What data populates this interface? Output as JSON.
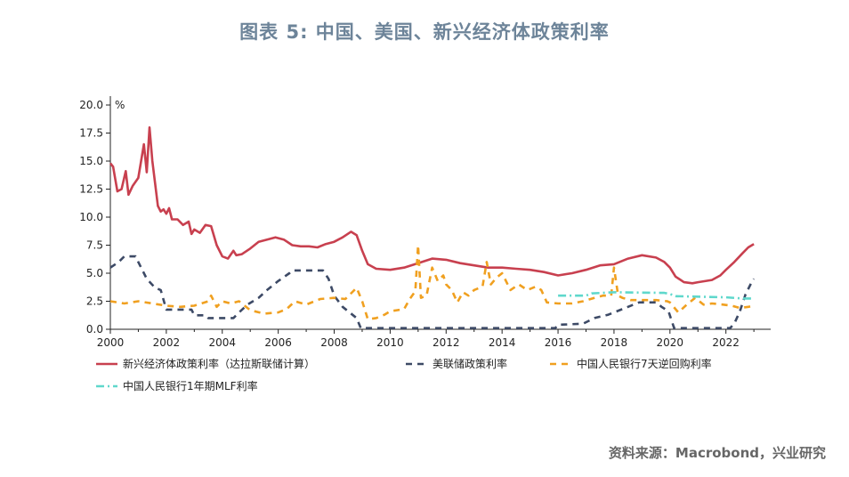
{
  "title": "图表 5:    中国、美国、新兴经济体政策利率",
  "source": "资料来源：Macrobond，兴业研究",
  "chart_data": {
    "type": "line",
    "ylabel": "%",
    "xlim": [
      2000,
      2023.6
    ],
    "ylim": [
      0,
      20
    ],
    "yticks": [
      "0.0",
      "2.5",
      "5.0",
      "7.5",
      "10.0",
      "12.5",
      "15.0",
      "17.5",
      "20.0"
    ],
    "xticks": [
      "2000",
      "2002",
      "2004",
      "2006",
      "2008",
      "2010",
      "2012",
      "2014",
      "2016",
      "2018",
      "2020",
      "2022"
    ],
    "series": [
      {
        "name": "新兴经济体政策利率（达拉斯联储计算）",
        "color": "#c8404f",
        "style": "solid",
        "points": [
          [
            2000,
            14.8
          ],
          [
            2000.1,
            14.5
          ],
          [
            2000.25,
            12.3
          ],
          [
            2000.4,
            12.5
          ],
          [
            2000.55,
            14.1
          ],
          [
            2000.65,
            12.0
          ],
          [
            2000.8,
            12.8
          ],
          [
            2001.0,
            13.5
          ],
          [
            2001.2,
            16.5
          ],
          [
            2001.3,
            14.0
          ],
          [
            2001.4,
            18.0
          ],
          [
            2001.5,
            15.0
          ],
          [
            2001.6,
            13.0
          ],
          [
            2001.7,
            11.0
          ],
          [
            2001.8,
            10.5
          ],
          [
            2001.9,
            10.7
          ],
          [
            2002.0,
            10.3
          ],
          [
            2002.1,
            10.8
          ],
          [
            2002.2,
            9.8
          ],
          [
            2002.4,
            9.8
          ],
          [
            2002.6,
            9.3
          ],
          [
            2002.8,
            9.6
          ],
          [
            2002.9,
            8.5
          ],
          [
            2003.0,
            8.9
          ],
          [
            2003.2,
            8.6
          ],
          [
            2003.4,
            9.3
          ],
          [
            2003.6,
            9.2
          ],
          [
            2003.8,
            7.5
          ],
          [
            2004.0,
            6.5
          ],
          [
            2004.2,
            6.3
          ],
          [
            2004.4,
            7.0
          ],
          [
            2004.5,
            6.6
          ],
          [
            2004.7,
            6.7
          ],
          [
            2005.0,
            7.2
          ],
          [
            2005.3,
            7.8
          ],
          [
            2005.6,
            8.0
          ],
          [
            2005.9,
            8.2
          ],
          [
            2006.2,
            8.0
          ],
          [
            2006.5,
            7.5
          ],
          [
            2006.8,
            7.4
          ],
          [
            2007.1,
            7.4
          ],
          [
            2007.4,
            7.3
          ],
          [
            2007.7,
            7.6
          ],
          [
            2008.0,
            7.8
          ],
          [
            2008.3,
            8.2
          ],
          [
            2008.6,
            8.7
          ],
          [
            2008.8,
            8.4
          ],
          [
            2009.0,
            7.0
          ],
          [
            2009.2,
            5.8
          ],
          [
            2009.5,
            5.4
          ],
          [
            2010.0,
            5.3
          ],
          [
            2010.5,
            5.5
          ],
          [
            2011.0,
            5.9
          ],
          [
            2011.5,
            6.3
          ],
          [
            2012.0,
            6.2
          ],
          [
            2012.5,
            5.9
          ],
          [
            2013.0,
            5.7
          ],
          [
            2013.5,
            5.5
          ],
          [
            2014.0,
            5.5
          ],
          [
            2014.5,
            5.4
          ],
          [
            2015.0,
            5.3
          ],
          [
            2015.5,
            5.1
          ],
          [
            2016.0,
            4.8
          ],
          [
            2016.5,
            5.0
          ],
          [
            2017.0,
            5.3
          ],
          [
            2017.5,
            5.7
          ],
          [
            2018.0,
            5.8
          ],
          [
            2018.5,
            6.3
          ],
          [
            2019.0,
            6.6
          ],
          [
            2019.5,
            6.4
          ],
          [
            2019.8,
            6.0
          ],
          [
            2020.0,
            5.5
          ],
          [
            2020.2,
            4.7
          ],
          [
            2020.5,
            4.2
          ],
          [
            2020.8,
            4.1
          ],
          [
            2021.0,
            4.2
          ],
          [
            2021.5,
            4.4
          ],
          [
            2021.8,
            4.8
          ],
          [
            2022.0,
            5.3
          ],
          [
            2022.3,
            6.0
          ],
          [
            2022.6,
            6.8
          ],
          [
            2022.8,
            7.3
          ],
          [
            2023.0,
            7.6
          ]
        ]
      },
      {
        "name": "美联储政策利率",
        "color": "#3d4a66",
        "style": "dashed",
        "points": [
          [
            2000,
            5.5
          ],
          [
            2000.3,
            6.0
          ],
          [
            2000.5,
            6.5
          ],
          [
            2000.9,
            6.5
          ],
          [
            2001.0,
            6.0
          ],
          [
            2001.3,
            4.5
          ],
          [
            2001.6,
            3.7
          ],
          [
            2001.8,
            3.5
          ],
          [
            2002.0,
            1.75
          ],
          [
            2002.9,
            1.75
          ],
          [
            2003.0,
            1.25
          ],
          [
            2003.4,
            1.25
          ],
          [
            2003.5,
            1.0
          ],
          [
            2004.4,
            1.0
          ],
          [
            2004.6,
            1.5
          ],
          [
            2004.9,
            2.2
          ],
          [
            2005.3,
            2.8
          ],
          [
            2005.6,
            3.5
          ],
          [
            2006.0,
            4.3
          ],
          [
            2006.4,
            5.0
          ],
          [
            2006.5,
            5.25
          ],
          [
            2007.6,
            5.25
          ],
          [
            2007.8,
            4.5
          ],
          [
            2008.0,
            3.0
          ],
          [
            2008.3,
            2.0
          ],
          [
            2008.8,
            1.0
          ],
          [
            2008.95,
            0.1
          ],
          [
            2015.9,
            0.1
          ],
          [
            2016.0,
            0.4
          ],
          [
            2016.9,
            0.5
          ],
          [
            2017.3,
            1.0
          ],
          [
            2017.8,
            1.3
          ],
          [
            2018.3,
            1.8
          ],
          [
            2018.9,
            2.4
          ],
          [
            2019.5,
            2.4
          ],
          [
            2019.7,
            2.0
          ],
          [
            2019.95,
            1.6
          ],
          [
            2020.15,
            0.1
          ],
          [
            2022.15,
            0.1
          ],
          [
            2022.3,
            0.5
          ],
          [
            2022.5,
            1.6
          ],
          [
            2022.7,
            3.1
          ],
          [
            2022.9,
            4.1
          ],
          [
            2023.0,
            4.5
          ]
        ]
      },
      {
        "name": "中国人民银行7天逆回购利率",
        "color": "#f0a020",
        "style": "dashed",
        "points": [
          [
            2000,
            2.5
          ],
          [
            2000.5,
            2.3
          ],
          [
            2001.0,
            2.5
          ],
          [
            2001.5,
            2.3
          ],
          [
            2002.0,
            2.1
          ],
          [
            2002.5,
            2.0
          ],
          [
            2003.0,
            2.1
          ],
          [
            2003.5,
            2.5
          ],
          [
            2003.6,
            3.0
          ],
          [
            2003.8,
            2.0
          ],
          [
            2004.0,
            2.5
          ],
          [
            2004.3,
            2.3
          ],
          [
            2004.6,
            2.5
          ],
          [
            2005.0,
            1.7
          ],
          [
            2005.5,
            1.4
          ],
          [
            2006.0,
            1.5
          ],
          [
            2006.3,
            1.8
          ],
          [
            2006.6,
            2.5
          ],
          [
            2007.0,
            2.2
          ],
          [
            2007.5,
            2.7
          ],
          [
            2008.0,
            2.8
          ],
          [
            2008.4,
            2.7
          ],
          [
            2008.8,
            3.7
          ],
          [
            2009.0,
            2.5
          ],
          [
            2009.2,
            0.9
          ],
          [
            2009.5,
            1.0
          ],
          [
            2009.8,
            1.3
          ],
          [
            2010.0,
            1.6
          ],
          [
            2010.5,
            1.8
          ],
          [
            2010.7,
            2.7
          ],
          [
            2010.9,
            3.4
          ],
          [
            2011.0,
            7.5
          ],
          [
            2011.1,
            2.8
          ],
          [
            2011.3,
            3.0
          ],
          [
            2011.5,
            5.5
          ],
          [
            2011.7,
            4.3
          ],
          [
            2011.9,
            4.8
          ],
          [
            2012.0,
            4.0
          ],
          [
            2012.2,
            3.5
          ],
          [
            2012.4,
            2.4
          ],
          [
            2012.6,
            3.3
          ],
          [
            2012.8,
            3.0
          ],
          [
            2013.0,
            3.5
          ],
          [
            2013.3,
            3.8
          ],
          [
            2013.45,
            6.0
          ],
          [
            2013.6,
            4.0
          ],
          [
            2013.8,
            4.6
          ],
          [
            2014.0,
            5.0
          ],
          [
            2014.3,
            3.5
          ],
          [
            2014.6,
            4.0
          ],
          [
            2014.9,
            3.5
          ],
          [
            2015.2,
            3.8
          ],
          [
            2015.4,
            3.5
          ],
          [
            2015.6,
            2.4
          ],
          [
            2016.0,
            2.3
          ],
          [
            2016.5,
            2.3
          ],
          [
            2016.9,
            2.5
          ],
          [
            2017.3,
            2.8
          ],
          [
            2017.6,
            3.0
          ],
          [
            2017.9,
            3.0
          ],
          [
            2018.0,
            5.5
          ],
          [
            2018.15,
            3.0
          ],
          [
            2018.3,
            2.8
          ],
          [
            2018.6,
            2.6
          ],
          [
            2019.0,
            2.6
          ],
          [
            2019.5,
            2.6
          ],
          [
            2019.9,
            2.5
          ],
          [
            2020.0,
            2.4
          ],
          [
            2020.3,
            1.5
          ],
          [
            2020.6,
            2.2
          ],
          [
            2020.9,
            2.8
          ],
          [
            2021.2,
            2.2
          ],
          [
            2021.5,
            2.3
          ],
          [
            2021.9,
            2.2
          ],
          [
            2022.2,
            2.1
          ],
          [
            2022.5,
            1.9
          ],
          [
            2022.8,
            2.0
          ],
          [
            2023.0,
            2.1
          ]
        ]
      },
      {
        "name": "中国人民银行1年期MLF利率",
        "color": "#5fd8cc",
        "style": "dashdot",
        "points": [
          [
            2016.0,
            3.0
          ],
          [
            2017.0,
            3.0
          ],
          [
            2017.2,
            3.2
          ],
          [
            2018.0,
            3.3
          ],
          [
            2019.8,
            3.25
          ],
          [
            2020.0,
            3.15
          ],
          [
            2020.2,
            2.95
          ],
          [
            2022.0,
            2.85
          ],
          [
            2022.6,
            2.75
          ],
          [
            2023.0,
            2.75
          ]
        ]
      }
    ],
    "legend": "bottom"
  }
}
